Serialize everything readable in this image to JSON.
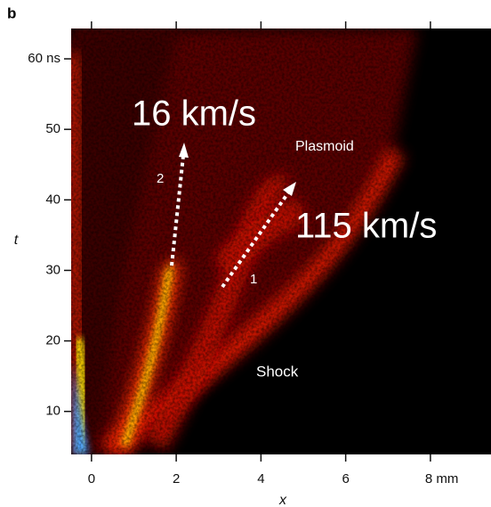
{
  "chart_data": {
    "type": "image",
    "panel_label": "b",
    "x_label": "x",
    "y_label": "t",
    "xlim": [
      -0.48,
      9.43
    ],
    "ylim": [
      3.9,
      64.3
    ],
    "xticks": [
      0,
      2,
      4,
      6,
      {
        "value": 8,
        "label": "8 mm"
      }
    ],
    "yticks": [
      10,
      20,
      30,
      40,
      50,
      {
        "value": 60,
        "label": "60 ns"
      }
    ],
    "annotations": [
      "16 km/s",
      "115 km/s",
      "Plasmoid",
      "Shock",
      "2",
      "1"
    ]
  }
}
